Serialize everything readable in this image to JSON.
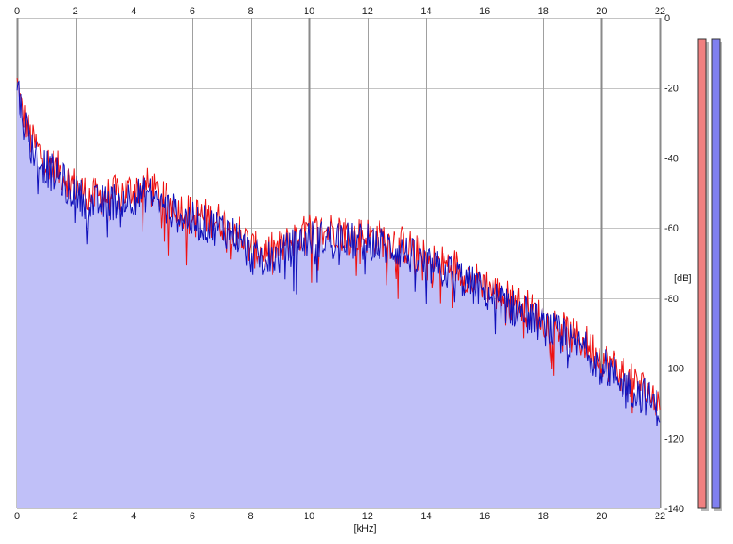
{
  "chart_data": {
    "type": "area",
    "xlabel": "[kHz]",
    "ylabel": "[dB]",
    "xlim": [
      0,
      22
    ],
    "ylim": [
      -140,
      0
    ],
    "x_ticks": [
      "0",
      "2",
      "4",
      "6",
      "8",
      "10",
      "12",
      "14",
      "16",
      "18",
      "20",
      "22"
    ],
    "y_ticks": [
      "0",
      "-20",
      "-40",
      "-60",
      "-80",
      "-100",
      "-120",
      "-140"
    ],
    "grid": true,
    "series": [
      {
        "color": "#ee1111",
        "x": [
          0,
          0.2,
          0.5,
          1,
          1.5,
          2,
          2.5,
          3,
          3.5,
          4,
          4.5,
          5,
          5.5,
          6,
          6.5,
          7,
          7.5,
          8,
          8.5,
          9,
          9.5,
          10,
          10.5,
          11,
          11.5,
          12,
          12.5,
          13,
          13.5,
          14,
          14.5,
          15,
          15.5,
          16,
          16.5,
          17,
          17.5,
          18,
          18.5,
          19,
          19.5,
          20,
          20.5,
          21,
          21.5,
          22
        ],
        "values": [
          -19,
          -27,
          -35,
          -41,
          -44,
          -48,
          -51,
          -51,
          -50,
          -49,
          -48,
          -52,
          -54,
          -56,
          -57,
          -58,
          -60,
          -66,
          -67,
          -66,
          -63,
          -61,
          -61,
          -60,
          -62,
          -62,
          -63,
          -64,
          -66,
          -69,
          -70,
          -71,
          -74,
          -76,
          -79,
          -81,
          -83,
          -86,
          -88,
          -91,
          -93,
          -97,
          -100,
          -104,
          -106,
          -110
        ]
      },
      {
        "color": "#1111bb",
        "x": [
          0,
          0.2,
          0.5,
          1,
          1.5,
          2,
          2.5,
          3,
          3.5,
          4,
          4.5,
          5,
          5.5,
          6,
          6.5,
          7,
          7.5,
          8,
          8.5,
          9,
          9.5,
          10,
          10.5,
          11,
          11.5,
          12,
          12.5,
          13,
          13.5,
          14,
          14.5,
          15,
          15.5,
          16,
          16.5,
          17,
          17.5,
          18,
          18.5,
          19,
          19.5,
          20,
          20.5,
          21,
          21.5,
          22
        ],
        "values": [
          -19,
          -28,
          -37,
          -43,
          -46,
          -50,
          -53,
          -53,
          -52,
          -51,
          -50,
          -54,
          -56,
          -58,
          -59,
          -60,
          -62,
          -68,
          -69,
          -68,
          -65,
          -63,
          -63,
          -62,
          -64,
          -64,
          -65,
          -66,
          -68,
          -71,
          -72,
          -73,
          -76,
          -78,
          -81,
          -83,
          -85,
          -88,
          -90,
          -93,
          -95,
          -99,
          -102,
          -106,
          -108,
          -112
        ]
      }
    ],
    "level_meters": [
      {
        "color": "#f08080",
        "level_db": 0
      },
      {
        "color": "#8080f0",
        "level_db": 0
      }
    ]
  }
}
